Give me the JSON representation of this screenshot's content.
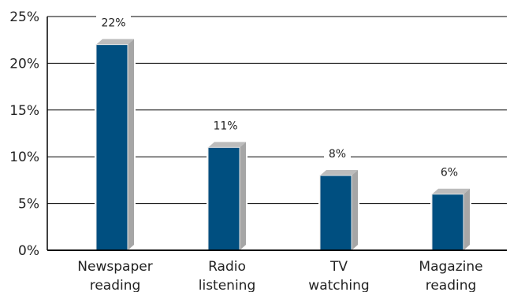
{
  "chart_data": {
    "type": "bar",
    "categories": [
      [
        "Newspaper",
        "reading"
      ],
      [
        "Radio",
        "listening"
      ],
      [
        "TV",
        "watching"
      ],
      [
        "Magazine",
        "reading"
      ]
    ],
    "values": [
      22,
      11,
      8,
      6
    ],
    "data_labels": [
      "22%",
      "11%",
      "8%",
      "6%"
    ],
    "y_ticks": [
      0,
      5,
      10,
      15,
      20,
      25
    ],
    "y_tick_labels": [
      "0%",
      "5%",
      "10%",
      "15%",
      "20%",
      "25%"
    ],
    "ylim": [
      0,
      25
    ],
    "grid": true,
    "colors": {
      "bar_front": "#004f80",
      "bar_side": "#a6a6a6",
      "bar_top": "#bcbcbc",
      "grid": "#000000"
    }
  }
}
